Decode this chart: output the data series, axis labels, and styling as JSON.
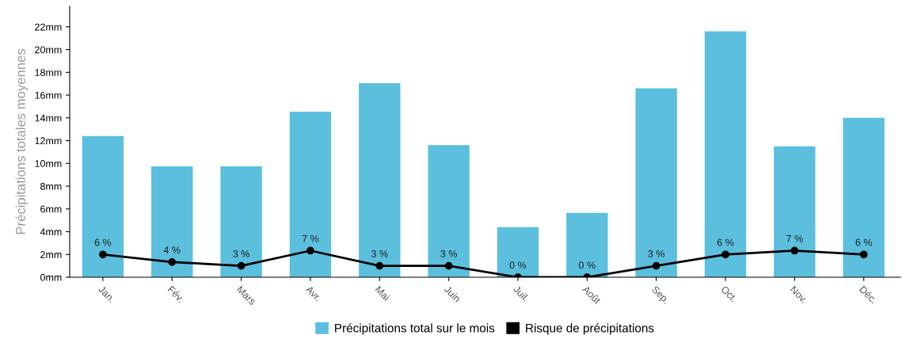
{
  "chart_data": {
    "type": "bar",
    "ylabel": "Précipitations totales moyennes",
    "categories": [
      "Jan.",
      "Fév.",
      "Mars",
      "Avr.",
      "Mai",
      "Juin",
      "Juil.",
      "Août",
      "Sep.",
      "Oct.",
      "Nov.",
      "Déc."
    ],
    "series": [
      {
        "name": "Précipitations total sur le mois",
        "color": "#5bbfdd",
        "values": [
          12.4,
          9.75,
          9.75,
          14.55,
          17.05,
          11.6,
          4.4,
          5.65,
          16.6,
          21.6,
          11.5,
          14.0
        ]
      },
      {
        "name": "Risque de précipitations",
        "type": "line",
        "axis": "y2",
        "color": "#000000",
        "marker": "circle",
        "values": [
          6,
          4,
          3,
          7,
          3,
          3,
          0,
          0,
          3,
          6,
          7,
          6
        ],
        "value_labels": [
          "6 %",
          "4 %",
          "3 %",
          "7 %",
          "3 %",
          "3 %",
          "0 %",
          "0 %",
          "3 %",
          "6 %",
          "7 %",
          "6 %"
        ]
      }
    ],
    "ylim": [
      0,
      23.8
    ],
    "yticks": [
      {
        "value": 0,
        "label": "0mm"
      },
      {
        "value": 2,
        "label": "2mm"
      },
      {
        "value": 4,
        "label": "4mm"
      },
      {
        "value": 6,
        "label": "6mm"
      },
      {
        "value": 8,
        "label": "8mm"
      },
      {
        "value": 10,
        "label": "10mm"
      },
      {
        "value": 12,
        "label": "12mm"
      },
      {
        "value": 14,
        "label": "14mm"
      },
      {
        "value": 16,
        "label": "16mm"
      },
      {
        "value": 18,
        "label": "18mm"
      },
      {
        "value": 20,
        "label": "20mm"
      },
      {
        "value": 22,
        "label": "22mm"
      }
    ],
    "grid": false,
    "legend": "bottom"
  }
}
